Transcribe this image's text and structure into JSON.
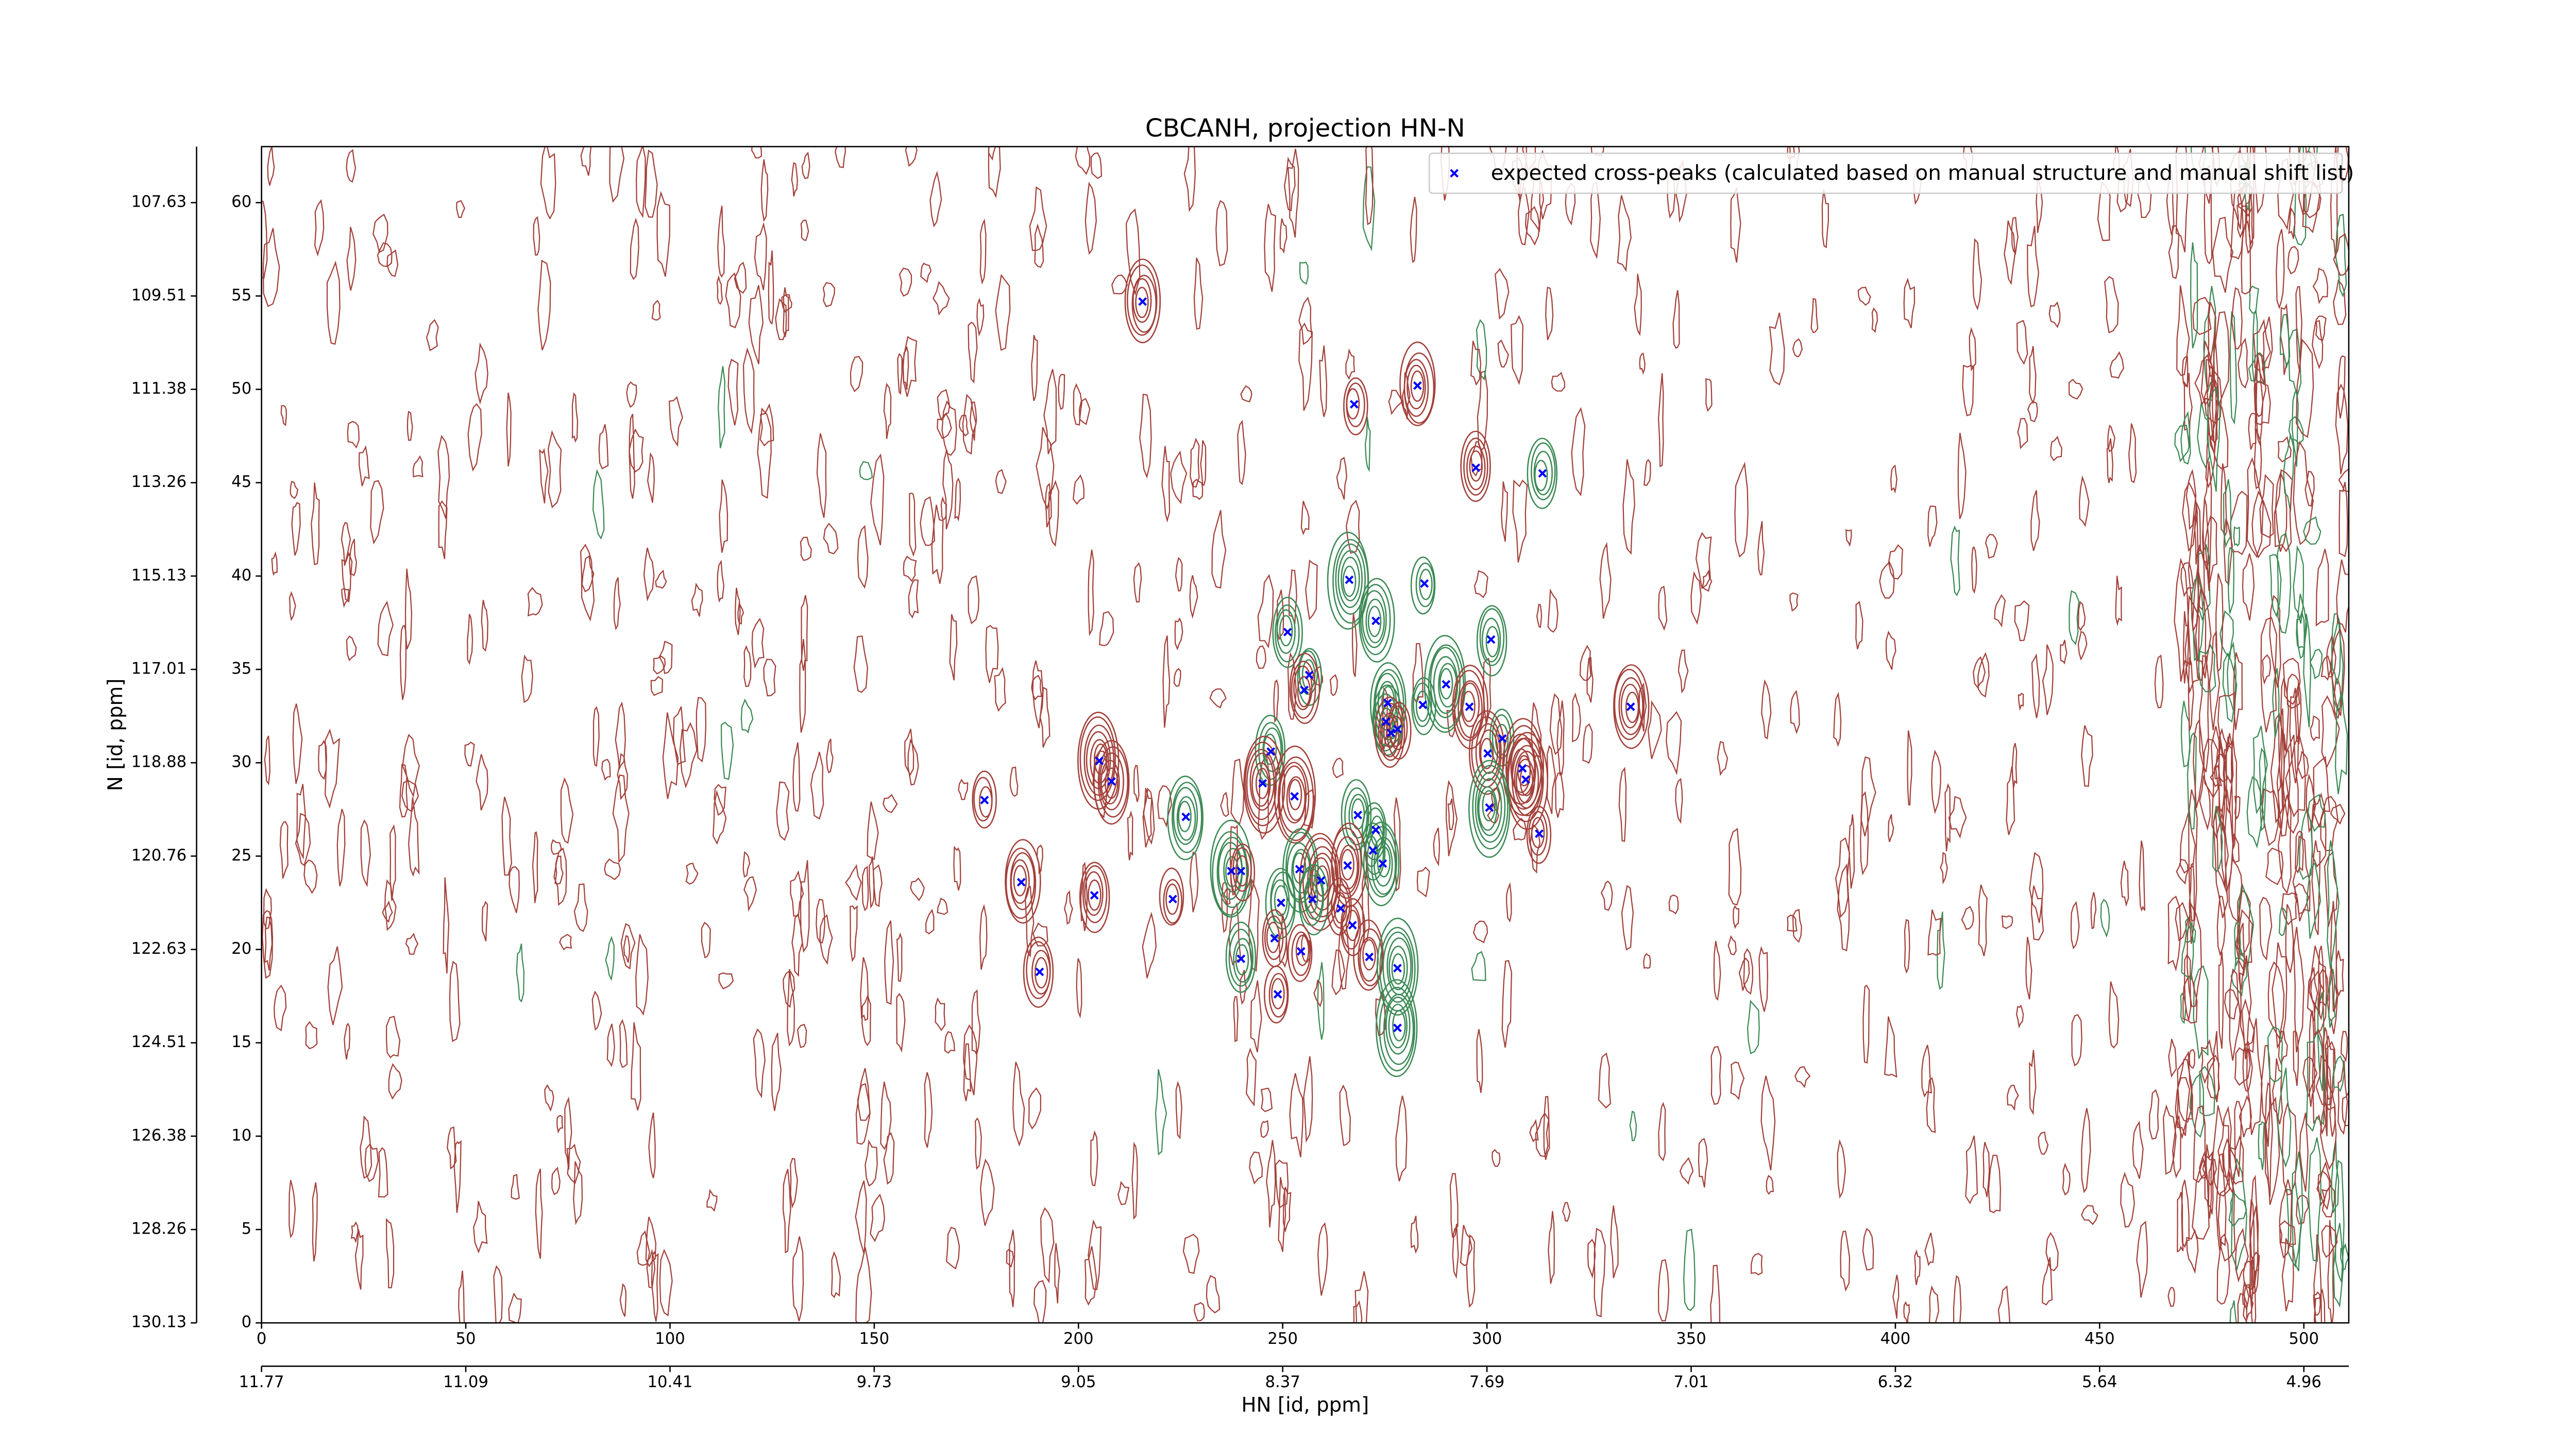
{
  "chart_data": {
    "type": "scatter",
    "title": "CBCANH, projection HN-N",
    "x2label": "HN [id, ppm]",
    "y2label": "N [id, ppm]",
    "xlim": [
      0,
      511
    ],
    "ylim": [
      0,
      63
    ],
    "xticks": [
      0,
      50,
      100,
      150,
      200,
      250,
      300,
      350,
      400,
      450,
      500
    ],
    "yticks": [
      0,
      5,
      10,
      15,
      20,
      25,
      30,
      35,
      40,
      45,
      50,
      55,
      60
    ],
    "x2ticks": [
      {
        "value": 0,
        "label": "11.77"
      },
      {
        "value": 50,
        "label": "11.09"
      },
      {
        "value": 100,
        "label": "10.41"
      },
      {
        "value": 150,
        "label": "9.73"
      },
      {
        "value": 200,
        "label": "9.05"
      },
      {
        "value": 250,
        "label": "8.37"
      },
      {
        "value": 300,
        "label": "7.69"
      },
      {
        "value": 350,
        "label": "7.01"
      },
      {
        "value": 400,
        "label": "6.32"
      },
      {
        "value": 450,
        "label": "5.64"
      },
      {
        "value": 500,
        "label": "4.96"
      }
    ],
    "y2ticks": [
      {
        "value": 0,
        "label": "130.13"
      },
      {
        "value": 5,
        "label": "128.26"
      },
      {
        "value": 10,
        "label": "126.38"
      },
      {
        "value": 15,
        "label": "124.51"
      },
      {
        "value": 20,
        "label": "122.63"
      },
      {
        "value": 25,
        "label": "120.76"
      },
      {
        "value": 30,
        "label": "118.88"
      },
      {
        "value": 35,
        "label": "117.01"
      },
      {
        "value": 40,
        "label": "115.13"
      },
      {
        "value": 45,
        "label": "113.26"
      },
      {
        "value": 50,
        "label": "111.38"
      },
      {
        "value": 55,
        "label": "109.51"
      },
      {
        "value": 60,
        "label": "107.63"
      }
    ],
    "legend": "upper right",
    "series": [
      {
        "name": "expected cross-peaks (calculated based on manual structure and manual shift list)",
        "color": "#0000ff",
        "x": [
          215.7,
          267.5,
          283.0,
          297.3,
          313.6,
          266.3,
          284.7,
          251.2,
          272.8,
          301.0,
          256.5,
          255.3,
          275.7,
          290.0,
          284.3,
          295.7,
          335.2,
          275.3,
          276.5,
          278.1,
          303.8,
          300.2,
          205.1,
          208.1,
          247.1,
          308.7,
          309.5,
          177.0,
          245.1,
          252.9,
          300.6,
          226.3,
          268.4,
          272.8,
          312.8,
          272.1,
          265.9,
          274.5,
          186.0,
          237.4,
          239.8,
          254.1,
          259.4,
          203.9,
          223.1,
          249.6,
          257.3,
          264.2,
          267.1,
          248.0,
          239.8,
          254.5,
          271.2,
          190.5,
          278.1,
          248.8,
          278.1
        ],
        "values": [
          54.7,
          49.2,
          50.2,
          45.8,
          45.5,
          39.8,
          39.6,
          37.0,
          37.6,
          36.6,
          34.7,
          33.9,
          33.2,
          34.2,
          33.1,
          33.0,
          33.0,
          32.2,
          31.6,
          31.8,
          31.3,
          30.5,
          30.1,
          29.0,
          30.6,
          29.7,
          29.1,
          28.0,
          28.9,
          28.2,
          27.6,
          27.1,
          27.2,
          26.4,
          26.2,
          25.3,
          24.5,
          24.6,
          23.6,
          24.2,
          24.2,
          24.3,
          23.7,
          22.9,
          22.7,
          22.5,
          22.7,
          22.2,
          21.3,
          20.6,
          19.5,
          19.9,
          19.6,
          18.8,
          19.0,
          17.6,
          15.8
        ]
      }
    ]
  }
}
